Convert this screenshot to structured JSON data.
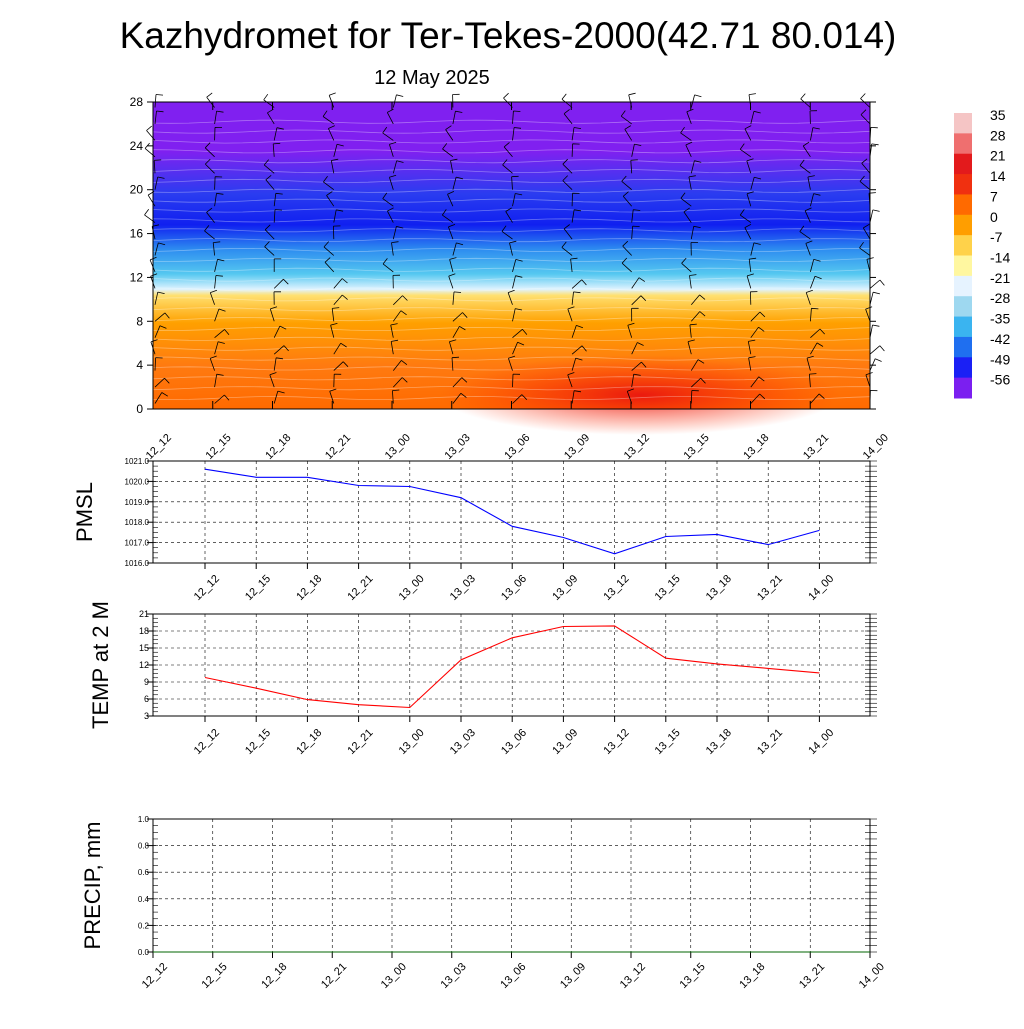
{
  "title": "Kazhydromet for Ter-Tekes-2000(42.71 80.014)",
  "subtitle": "12 May 2025",
  "time_labels": [
    "12_12",
    "12_15",
    "12_18",
    "12_21",
    "13_00",
    "13_03",
    "13_06",
    "13_09",
    "13_12",
    "13_15",
    "13_18",
    "13_21",
    "14_00"
  ],
  "colorbar": {
    "labels": [
      "35",
      "28",
      "21",
      "14",
      "7",
      "0",
      "-7",
      "-14",
      "-21",
      "-28",
      "-35",
      "-42",
      "-49",
      "-56"
    ],
    "colors": [
      "#f5c5c5",
      "#ef6f6f",
      "#e31a1c",
      "#f03010",
      "#ff6a00",
      "#ff9e00",
      "#ffd24a",
      "#fff7a0",
      "#e6f3ff",
      "#9ed8f0",
      "#3ab4f0",
      "#1f6ff0",
      "#1a20f5",
      "#7b1ff0"
    ]
  },
  "chart_data": [
    {
      "type": "heatmap",
      "title": "",
      "xlabel": "",
      "ylabel": "",
      "x": [
        "12_12",
        "12_15",
        "12_18",
        "12_21",
        "13_00",
        "13_03",
        "13_06",
        "13_09",
        "13_12",
        "13_15",
        "13_18",
        "13_21",
        "14_00"
      ],
      "ylim": [
        0,
        28
      ],
      "yticks": [
        "0",
        "4",
        "8",
        "12",
        "16",
        "20",
        "24",
        "28"
      ],
      "band_levels": [
        {
          "level": 0,
          "value": 7
        },
        {
          "level": 4,
          "value": 7
        },
        {
          "level": 8,
          "value": 2
        },
        {
          "level": 11,
          "value": -7
        },
        {
          "level": 12,
          "value": -21
        },
        {
          "level": 16,
          "value": -42
        },
        {
          "level": 20,
          "value": -56
        },
        {
          "level": 24,
          "value": -56
        },
        {
          "level": 28,
          "value": -56
        }
      ]
    },
    {
      "type": "line",
      "ylabel": "PMSL",
      "categories": [
        "12_12",
        "12_15",
        "12_18",
        "12_21",
        "13_00",
        "13_03",
        "13_06",
        "13_09",
        "13_12",
        "13_15",
        "13_18",
        "13_21",
        "14_00"
      ],
      "ylim": [
        1016.0,
        1021.0
      ],
      "yticks": [
        "1016.0",
        "1017.0",
        "1018.0",
        "1019.0",
        "1020.0",
        "1021.0"
      ],
      "color": "#0000ff",
      "series": [
        {
          "values": [
            1020.6,
            1020.2,
            1020.2,
            1019.8,
            1019.75,
            1019.2,
            1017.8,
            1017.25,
            1016.45,
            1017.3,
            1017.4,
            1016.9,
            1017.6
          ]
        }
      ]
    },
    {
      "type": "line",
      "ylabel": "TEMP at 2 M",
      "categories": [
        "12_12",
        "12_15",
        "12_18",
        "12_21",
        "13_00",
        "13_03",
        "13_06",
        "13_09",
        "13_12",
        "13_15",
        "13_18",
        "13_21",
        "14_00"
      ],
      "ylim": [
        3,
        21
      ],
      "yticks": [
        "3",
        "6",
        "9",
        "12",
        "15",
        "18",
        "21"
      ],
      "color": "#ff0000",
      "series": [
        {
          "values": [
            9.8,
            7.9,
            5.9,
            5.0,
            4.5,
            12.9,
            16.8,
            18.8,
            18.9,
            13.2,
            12.2,
            11.4,
            10.6
          ]
        }
      ]
    },
    {
      "type": "line",
      "ylabel": "PRECIP, mm",
      "categories": [
        "12_12",
        "12_15",
        "12_18",
        "12_21",
        "13_00",
        "13_03",
        "13_06",
        "13_09",
        "13_12",
        "13_15",
        "13_18",
        "13_21",
        "14_00"
      ],
      "ylim": [
        0.0,
        1.0
      ],
      "yticks": [
        "0.0",
        "0.2",
        "0.4",
        "0.6",
        "0.8",
        "1.0"
      ],
      "color": "#006400",
      "series": [
        {
          "values": [
            0,
            0,
            0,
            0,
            0,
            0,
            0,
            0,
            0,
            0,
            0,
            0,
            0
          ]
        }
      ]
    }
  ]
}
